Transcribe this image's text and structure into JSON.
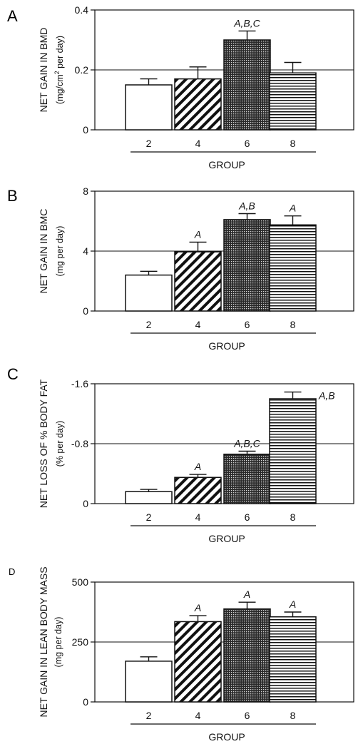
{
  "chart_data": [
    {
      "type": "bar",
      "panel_label": "A",
      "ylabel": "NET GAIN IN BMD",
      "ylabel_unit_pre": "(mg/cm",
      "ylabel_unit_sup": "2",
      "ylabel_unit_post": " per day)",
      "xlabel": "GROUP",
      "categories": [
        "2",
        "4",
        "6",
        "8"
      ],
      "values": [
        0.15,
        0.17,
        0.3,
        0.19
      ],
      "errors": [
        0.02,
        0.04,
        0.03,
        0.035
      ],
      "annotations": [
        "",
        "",
        "A,B,C",
        ""
      ],
      "ylim": [
        0,
        0.4
      ],
      "yticks": [
        "0",
        "0.2",
        "0.4"
      ],
      "reference_line": 0.2
    },
    {
      "type": "bar",
      "panel_label": "B",
      "ylabel": "NET GAIN IN BMC",
      "ylabel_unit": "(mg per day)",
      "xlabel": "GROUP",
      "categories": [
        "2",
        "4",
        "6",
        "8"
      ],
      "values": [
        2.4,
        3.95,
        6.1,
        5.75
      ],
      "errors": [
        0.25,
        0.65,
        0.4,
        0.6
      ],
      "annotations": [
        "",
        "A",
        "A,B",
        "A"
      ],
      "ylim": [
        0,
        8
      ],
      "yticks": [
        "0",
        "4",
        "8"
      ],
      "reference_line": 4
    },
    {
      "type": "bar",
      "panel_label": "C",
      "ylabel": "NET LOSS OF % BODY FAT",
      "ylabel_unit": "(% per day)",
      "xlabel": "GROUP",
      "categories": [
        "2",
        "4",
        "6",
        "8"
      ],
      "values": [
        0.16,
        0.35,
        0.66,
        1.4
      ],
      "errors": [
        0.03,
        0.04,
        0.04,
        0.09
      ],
      "annotations": [
        "",
        "A",
        "A,B,C",
        "A,B"
      ],
      "ylim": [
        0,
        1.6
      ],
      "yticks": [
        "0",
        "-0.8",
        "-1.6"
      ],
      "reference_line": 0.8
    },
    {
      "type": "bar",
      "panel_label": "D",
      "ylabel": "NET GAIN IN LEAN BODY MASS",
      "ylabel_unit": "(mg per day)",
      "xlabel": "GROUP",
      "categories": [
        "2",
        "4",
        "6",
        "8"
      ],
      "values": [
        170,
        335,
        388,
        355
      ],
      "errors": [
        18,
        25,
        28,
        20
      ],
      "annotations": [
        "",
        "A",
        "A",
        "A"
      ],
      "ylim": [
        0,
        500
      ],
      "yticks": [
        "0",
        "250",
        "500"
      ],
      "reference_line": 250
    }
  ]
}
